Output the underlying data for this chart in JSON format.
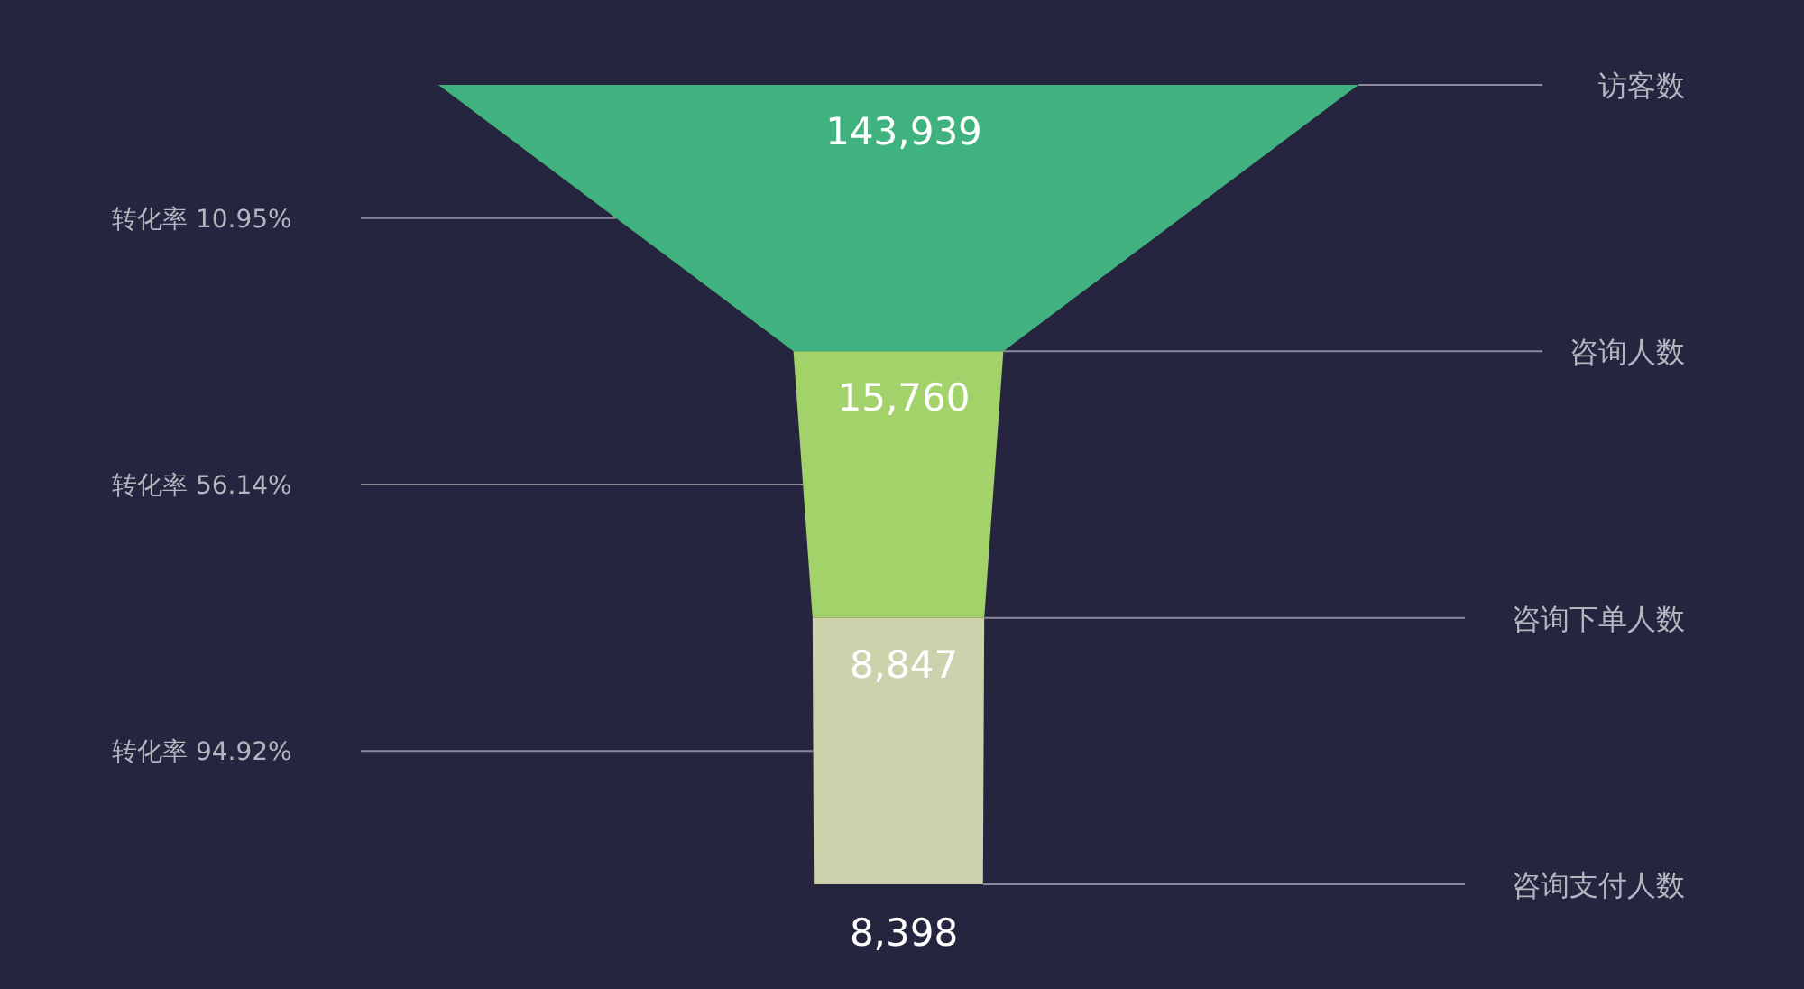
{
  "chart_data": {
    "type": "other",
    "categories": [
      "访客数",
      "咨询人数",
      "咨询下单人数",
      "咨询支付人数"
    ],
    "values": [
      143939,
      15760,
      8847,
      8398
    ],
    "value_labels": [
      "143,939",
      "15,760",
      "8,847",
      "8,398"
    ],
    "colors": [
      "#3fb27f",
      "#a3d16a",
      "#cdd2ad",
      "#ffffff"
    ],
    "annotations": [
      "转化率 10.95%",
      "转化率 56.14%",
      "转化率 94.92%"
    ]
  }
}
